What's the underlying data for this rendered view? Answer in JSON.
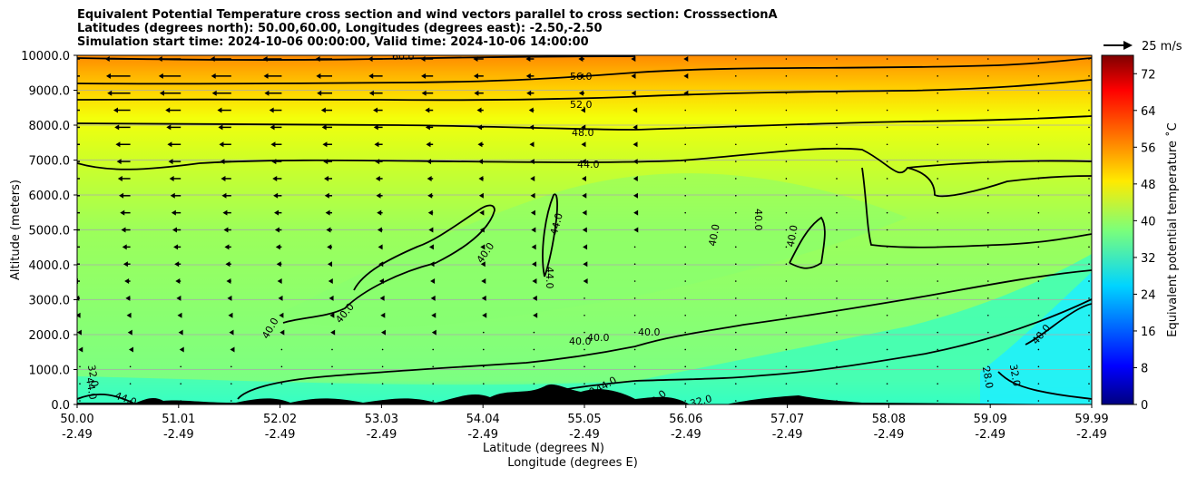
{
  "chart_data": {
    "type": "heatmap",
    "title_lines": [
      "Equivalent Potential Temperature cross section and wind vectors parallel to cross section: CrosssectionA",
      "Latitudes (degrees north): 50.00,60.00, Longitudes (degrees east): -2.50,-2.50",
      "Simulation start time: 2024-10-06 00:00:00, Valid time: 2024-10-06 14:00:00"
    ],
    "ylabel": "Altitude (meters)",
    "xlabel_lines": [
      "Latitude (degrees N)",
      "Longitude (degrees E)"
    ],
    "ylim": [
      0,
      10000
    ],
    "yticks": [
      "0.0",
      "1000.0",
      "2000.0",
      "3000.0",
      "4000.0",
      "5000.0",
      "6000.0",
      "7000.0",
      "8000.0",
      "9000.0",
      "10000.0"
    ],
    "xticks": [
      {
        "lat": "50.00",
        "lon": "-2.49"
      },
      {
        "lat": "51.01",
        "lon": "-2.49"
      },
      {
        "lat": "52.02",
        "lon": "-2.49"
      },
      {
        "lat": "53.03",
        "lon": "-2.49"
      },
      {
        "lat": "54.04",
        "lon": "-2.49"
      },
      {
        "lat": "55.05",
        "lon": "-2.49"
      },
      {
        "lat": "56.06",
        "lon": "-2.49"
      },
      {
        "lat": "57.07",
        "lon": "-2.49"
      },
      {
        "lat": "58.08",
        "lon": "-2.49"
      },
      {
        "lat": "59.09",
        "lon": "-2.49"
      },
      {
        "lat": "59.99",
        "lon": "-2.49"
      }
    ],
    "grid": "horizontal",
    "colorbar": {
      "label": "Equivalent potential temperature ˚C",
      "min": 0,
      "max": 76,
      "ticks": [
        "0",
        "8",
        "16",
        "24",
        "32",
        "40",
        "48",
        "56",
        "64",
        "72"
      ]
    },
    "quiver_key": "25 m/s",
    "contour_labels": [
      {
        "text": "60.0"
      },
      {
        "text": "56.0"
      },
      {
        "text": "52.0"
      },
      {
        "text": "48.0"
      },
      {
        "text": "44.0"
      },
      {
        "text": "44.0"
      },
      {
        "text": "44.0"
      },
      {
        "text": "40.0"
      },
      {
        "text": "40.0"
      },
      {
        "text": "40.0"
      },
      {
        "text": "40.0"
      },
      {
        "text": "40.0"
      },
      {
        "text": "40.0"
      },
      {
        "text": "40.0"
      },
      {
        "text": "40.0"
      },
      {
        "text": "40.0"
      },
      {
        "text": "40.0"
      },
      {
        "text": "28.0"
      },
      {
        "text": "32.0"
      },
      {
        "text": "32.0"
      },
      {
        "text": "32.0"
      },
      {
        "text": "32.0"
      },
      {
        "text": "32.0"
      },
      {
        "text": "44.0"
      },
      {
        "text": "44.0"
      },
      {
        "text": "44.0"
      }
    ],
    "theta_e_profile_at_left_edge": [
      {
        "alt": 0,
        "value": 40
      },
      {
        "alt": 1000,
        "value": 41
      },
      {
        "alt": 2000,
        "value": 42
      },
      {
        "alt": 4000,
        "value": 42
      },
      {
        "alt": 6000,
        "value": 45
      },
      {
        "alt": 7000,
        "value": 46
      },
      {
        "alt": 8000,
        "value": 48
      },
      {
        "alt": 9000,
        "value": 54
      },
      {
        "alt": 10000,
        "value": 62
      }
    ]
  },
  "colors": {
    "colormap": [
      "#00007f",
      "#0000ff",
      "#007fff",
      "#00ffff",
      "#7fff7f",
      "#ffff00",
      "#ff7f00",
      "#ff0000",
      "#7f0000"
    ]
  }
}
